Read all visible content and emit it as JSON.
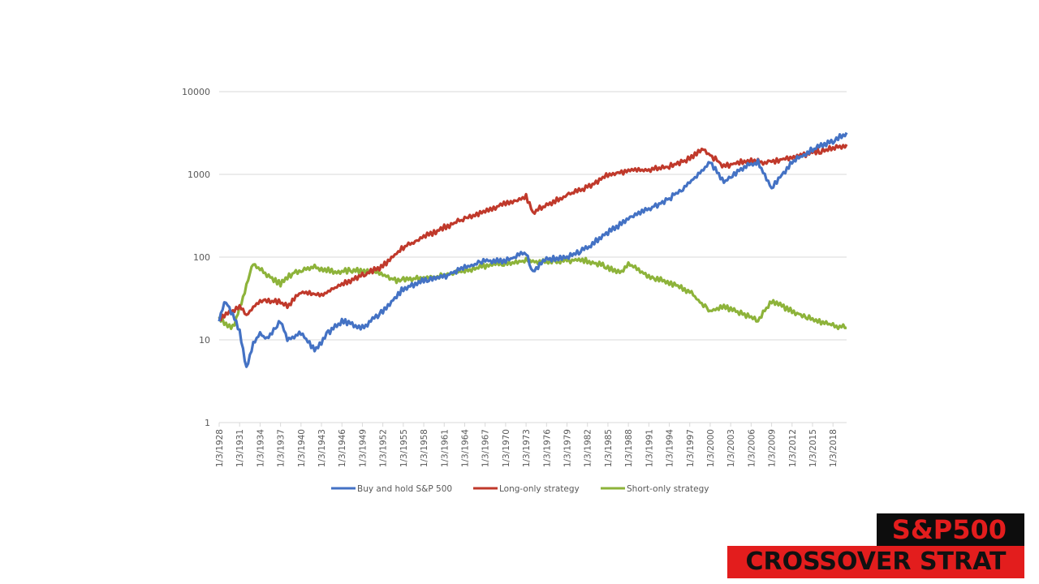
{
  "chart_data": {
    "type": "line",
    "title": "",
    "xlabel": "",
    "ylabel": "",
    "yscale": "log",
    "ylim": [
      1,
      10000
    ],
    "y_ticks": [
      "1",
      "10",
      "100",
      "1000",
      "10000"
    ],
    "x_ticks": [
      "1/3/1928",
      "1/3/1931",
      "1/3/1934",
      "1/3/1937",
      "1/3/1940",
      "1/3/1943",
      "1/3/1946",
      "1/3/1949",
      "1/3/1952",
      "1/3/1955",
      "1/3/1958",
      "1/3/1961",
      "1/3/1964",
      "1/3/1967",
      "1/3/1970",
      "1/3/1973",
      "1/3/1976",
      "1/3/1979",
      "1/3/1982",
      "1/3/1985",
      "1/3/1988",
      "1/3/1991",
      "1/3/1994",
      "1/3/1997",
      "1/3/2000",
      "1/3/2003",
      "1/3/2006",
      "1/3/2009",
      "1/3/2012",
      "1/3/2015",
      "1/3/2018"
    ],
    "xlim": [
      1928,
      2020
    ],
    "grid": true,
    "legend_position": "bottom",
    "series": [
      {
        "name": "Buy and hold S&P 500",
        "color": "#4472c4",
        "x": [
          1928,
          1929,
          1930,
          1931,
          1932,
          1933,
          1934,
          1935,
          1937,
          1938,
          1940,
          1942,
          1944,
          1946,
          1949,
          1952,
          1955,
          1956,
          1958,
          1961,
          1964,
          1967,
          1970,
          1973,
          1974,
          1976,
          1979,
          1982,
          1985,
          1988,
          1991,
          1994,
          1997,
          2000,
          2002,
          2005,
          2007,
          2009,
          2012,
          2015,
          2018,
          2020
        ],
        "values": [
          18,
          30,
          20,
          13,
          4.5,
          9,
          12,
          10,
          17,
          10,
          12,
          7.5,
          12,
          17,
          14,
          22,
          42,
          45,
          52,
          58,
          75,
          90,
          90,
          115,
          65,
          95,
          100,
          130,
          200,
          290,
          380,
          510,
          800,
          1400,
          800,
          1250,
          1400,
          680,
          1400,
          2000,
          2500,
          3200
        ]
      },
      {
        "name": "Long-only strategy",
        "color": "#c0392b",
        "x": [
          1928,
          1931,
          1932,
          1934,
          1937,
          1938,
          1940,
          1943,
          1946,
          1949,
          1952,
          1955,
          1958,
          1961,
          1964,
          1967,
          1970,
          1973,
          1974,
          1976,
          1979,
          1982,
          1985,
          1988,
          1991,
          1994,
          1997,
          1999,
          2002,
          2005,
          2008,
          2011,
          2014,
          2017,
          2020
        ],
        "values": [
          18,
          25,
          20,
          30,
          29,
          25,
          38,
          34,
          48,
          60,
          78,
          130,
          175,
          230,
          290,
          360,
          450,
          540,
          350,
          430,
          560,
          700,
          1000,
          1100,
          1150,
          1250,
          1550,
          2000,
          1250,
          1450,
          1400,
          1550,
          1750,
          2000,
          2300
        ]
      },
      {
        "name": "Short-only strategy",
        "color": "#8db33a",
        "x": [
          1928,
          1930,
          1931,
          1933,
          1935,
          1937,
          1939,
          1942,
          1945,
          1948,
          1951,
          1954,
          1957,
          1960,
          1963,
          1966,
          1970,
          1973,
          1976,
          1979,
          1981,
          1984,
          1987,
          1988,
          1991,
          1994,
          1997,
          2000,
          2002,
          2005,
          2007,
          2009,
          2012,
          2015,
          2018,
          2020
        ],
        "values": [
          18,
          14,
          24,
          85,
          60,
          48,
          66,
          75,
          66,
          70,
          66,
          52,
          56,
          58,
          66,
          75,
          85,
          90,
          88,
          90,
          94,
          80,
          66,
          85,
          58,
          50,
          38,
          22,
          25,
          20,
          17,
          30,
          22,
          18,
          15,
          14
        ]
      }
    ]
  },
  "legend": {
    "items": [
      {
        "label": "Buy and hold S&P 500",
        "color": "#4472c4"
      },
      {
        "label": "Long-only strategy",
        "color": "#c0392b"
      },
      {
        "label": "Short-only strategy",
        "color": "#8db33a"
      }
    ]
  },
  "banner": {
    "line1": "S&P500",
    "line2": "CROSSOVER STRAT",
    "line1_bg": "#0d0d0d",
    "line1_color": "#e31d1d",
    "line2_bg": "#e31d1d",
    "line2_color": "#111111"
  }
}
